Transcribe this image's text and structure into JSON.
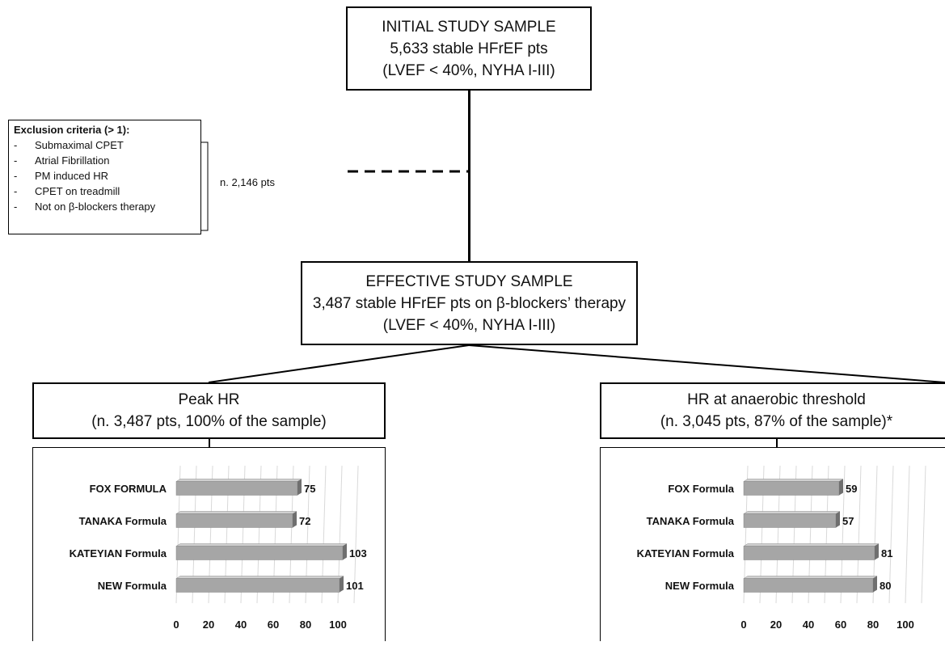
{
  "initial": {
    "title": "INITIAL STUDY SAMPLE",
    "line2": "5,633 stable HFrEF pts",
    "line3": "(LVEF < 40%, NYHA I-III)"
  },
  "exclusion": {
    "title": "Exclusion criteria (> 1):",
    "items": [
      "Submaximal CPET",
      "Atrial Fibrillation",
      "PM induced HR",
      "CPET on treadmill",
      "Not on β-blockers therapy"
    ],
    "count": "n. 2,146 pts"
  },
  "effective": {
    "title": "EFFECTIVE STUDY SAMPLE",
    "line2": "3,487 stable HFrEF pts on β-blockers’ therapy",
    "line3": "(LVEF < 40%, NYHA I-III)"
  },
  "peak_box": {
    "title": "Peak HR",
    "subtitle": "(n. 3,487 pts, 100% of the sample)"
  },
  "at_box": {
    "title": "HR at anaerobic threshold",
    "subtitle": "(n. 3,045 pts, 87% of the sample)*"
  },
  "chart_data": [
    {
      "type": "bar",
      "orientation": "horizontal",
      "categories": [
        "FOX FORMULA",
        "TANAKA Formula",
        "KATEYIAN Formula",
        "NEW Formula"
      ],
      "values": [
        75,
        72,
        103,
        101
      ],
      "xticks": [
        "0",
        "20",
        "40",
        "60",
        "80",
        "100"
      ],
      "xlim": [
        0,
        110
      ],
      "bar_color": "#a6a6a6",
      "grid": true
    },
    {
      "type": "bar",
      "orientation": "horizontal",
      "categories": [
        "FOX Formula",
        "TANAKA Formula",
        "KATEYIAN Formula",
        "NEW Formula"
      ],
      "values": [
        59,
        57,
        81,
        80
      ],
      "xticks": [
        "0",
        "20",
        "40",
        "60",
        "80",
        "100"
      ],
      "xlim": [
        0,
        110
      ],
      "bar_color": "#a6a6a6",
      "grid": true
    }
  ]
}
